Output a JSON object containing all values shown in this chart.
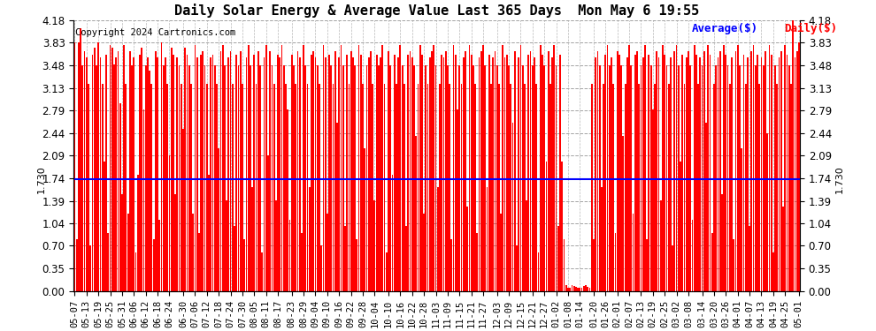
{
  "title": "Daily Solar Energy & Average Value Last 365 Days  Mon May 6 19:55",
  "copyright": "Copyright 2024 Cartronics.com",
  "legend_avg": "Average($)",
  "legend_daily": "Daily($)",
  "average": 1.73,
  "ylim": [
    0.0,
    4.18
  ],
  "yticks": [
    0.0,
    0.35,
    0.7,
    1.04,
    1.39,
    1.74,
    2.09,
    2.44,
    2.79,
    3.13,
    3.48,
    3.83,
    4.18
  ],
  "bar_color": "#ff0000",
  "avg_line_color": "#0000ff",
  "background_color": "#ffffff",
  "grid_color": "#999999",
  "title_color": "#000000",
  "xlabel_dates": [
    "05-07",
    "05-13",
    "05-19",
    "05-25",
    "05-31",
    "06-06",
    "06-12",
    "06-18",
    "06-24",
    "06-30",
    "07-06",
    "07-12",
    "07-18",
    "07-24",
    "07-30",
    "08-05",
    "08-11",
    "08-17",
    "08-23",
    "08-29",
    "09-04",
    "09-10",
    "09-16",
    "09-22",
    "09-28",
    "10-04",
    "10-10",
    "10-16",
    "10-22",
    "10-28",
    "11-03",
    "11-09",
    "11-15",
    "11-21",
    "11-27",
    "12-03",
    "12-09",
    "12-15",
    "12-21",
    "12-27",
    "01-02",
    "01-08",
    "01-14",
    "01-20",
    "01-26",
    "02-01",
    "02-07",
    "02-13",
    "02-19",
    "02-25",
    "03-02",
    "03-08",
    "03-14",
    "03-20",
    "03-26",
    "04-01",
    "04-07",
    "04-13",
    "04-19",
    "04-25",
    "05-01"
  ],
  "values": [
    3.83,
    0.8,
    3.83,
    4.05,
    3.48,
    3.7,
    3.6,
    3.2,
    0.7,
    3.65,
    3.75,
    3.48,
    3.83,
    3.6,
    3.2,
    2.0,
    3.65,
    0.9,
    3.8,
    3.75,
    3.5,
    3.6,
    3.7,
    2.9,
    1.5,
    3.8,
    3.2,
    1.2,
    3.7,
    3.48,
    3.6,
    0.6,
    1.8,
    3.65,
    3.75,
    2.8,
    3.48,
    3.6,
    3.4,
    3.2,
    0.8,
    3.7,
    3.6,
    1.1,
    3.83,
    3.48,
    3.6,
    3.2,
    2.1,
    3.75,
    3.65,
    1.5,
    3.6,
    3.48,
    3.2,
    2.5,
    3.75,
    3.65,
    3.48,
    3.2,
    1.2,
    3.8,
    3.6,
    0.9,
    3.65,
    3.7,
    3.48,
    3.2,
    1.8,
    3.6,
    3.65,
    3.48,
    3.2,
    2.2,
    3.7,
    3.8,
    3.48,
    1.4,
    3.6,
    3.7,
    3.2,
    1.0,
    3.65,
    3.48,
    3.7,
    3.2,
    0.8,
    3.6,
    3.8,
    3.48,
    1.6,
    3.65,
    3.2,
    3.7,
    3.48,
    0.6,
    3.6,
    3.8,
    2.1,
    3.7,
    3.48,
    3.2,
    1.4,
    3.65,
    3.6,
    3.8,
    3.48,
    3.2,
    2.8,
    1.1,
    3.65,
    3.48,
    3.2,
    3.7,
    3.6,
    0.9,
    3.8,
    3.48,
    3.2,
    1.6,
    3.65,
    3.7,
    3.6,
    3.48,
    3.2,
    0.7,
    3.8,
    3.6,
    1.2,
    3.65,
    3.48,
    3.2,
    3.7,
    2.6,
    3.6,
    3.8,
    3.48,
    1.0,
    3.65,
    3.2,
    3.7,
    3.6,
    3.48,
    0.8,
    3.8,
    3.65,
    3.2,
    2.2,
    3.48,
    3.6,
    3.7,
    3.2,
    1.4,
    3.65,
    3.48,
    3.6,
    3.8,
    3.2,
    0.6,
    3.7,
    3.48,
    1.8,
    3.65,
    3.2,
    3.6,
    3.8,
    3.48,
    3.2,
    1.0,
    3.65,
    3.7,
    3.6,
    3.48,
    2.4,
    3.2,
    3.8,
    3.65,
    1.2,
    3.48,
    3.2,
    3.6,
    3.7,
    3.8,
    3.48,
    1.6,
    3.2,
    3.65,
    3.6,
    3.7,
    3.48,
    3.2,
    0.8,
    3.8,
    3.65,
    2.8,
    3.48,
    3.2,
    3.6,
    3.7,
    1.3,
    3.8,
    3.65,
    3.48,
    3.2,
    0.9,
    3.6,
    3.7,
    3.8,
    3.48,
    1.6,
    3.65,
    3.2,
    3.6,
    3.7,
    3.48,
    3.2,
    1.2,
    3.8,
    3.6,
    3.65,
    3.48,
    3.2,
    2.6,
    3.7,
    0.7,
    3.6,
    3.8,
    3.48,
    3.2,
    1.4,
    3.65,
    3.7,
    3.48,
    3.6,
    3.2,
    0.6,
    3.8,
    3.65,
    3.48,
    2.0,
    3.7,
    3.2,
    3.6,
    3.8,
    3.48,
    1.0,
    3.65,
    2.0,
    0.8,
    0.1,
    0.05,
    0.05,
    0.1,
    0.08,
    0.06,
    0.05,
    0.05,
    0.05,
    0.08,
    0.1,
    0.06,
    0.05,
    3.2,
    0.8,
    3.6,
    3.7,
    3.48,
    1.6,
    3.2,
    3.65,
    3.8,
    3.48,
    3.6,
    3.2,
    0.9,
    3.7,
    3.65,
    3.48,
    2.4,
    3.2,
    3.6,
    3.8,
    3.48,
    1.2,
    3.65,
    3.7,
    3.2,
    3.48,
    3.6,
    3.8,
    0.8,
    3.65,
    3.48,
    2.8,
    3.2,
    3.7,
    3.6,
    1.4,
    3.8,
    3.65,
    3.48,
    3.2,
    3.6,
    0.7,
    3.7,
    3.8,
    3.48,
    2.0,
    3.65,
    3.2,
    3.6,
    3.7,
    3.48,
    1.1,
    3.8,
    3.65,
    3.2,
    3.6,
    3.48,
    3.7,
    2.6,
    3.8,
    3.65,
    0.9,
    3.2,
    3.48,
    3.6,
    3.7,
    1.5,
    3.8,
    3.65,
    3.48,
    3.2,
    3.6,
    0.8,
    3.7,
    3.8,
    3.48,
    2.2,
    3.65,
    3.2,
    3.6,
    1.0,
    3.7,
    3.8,
    3.48,
    3.65,
    3.2,
    3.6,
    3.48,
    3.7,
    2.44,
    3.8,
    3.65,
    0.6,
    3.48,
    3.2,
    3.6,
    3.7,
    1.3,
    3.8,
    3.65,
    3.48,
    3.2,
    4.18,
    3.6,
    3.7,
    3.83
  ]
}
